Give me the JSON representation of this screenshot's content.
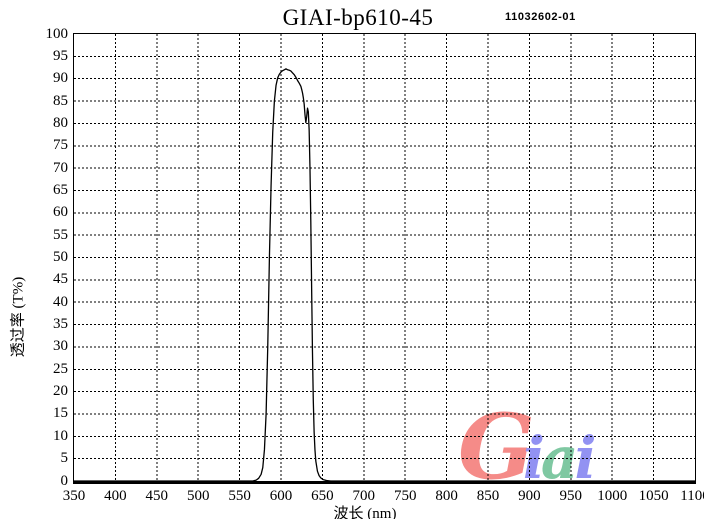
{
  "header": {
    "title": "GIAI-bp610-45",
    "code": "11032602-01"
  },
  "axes": {
    "x_label": "波长 (nm)",
    "y_label": "透过率 (T%)",
    "x_ticks": [
      350,
      400,
      450,
      500,
      550,
      600,
      650,
      700,
      750,
      800,
      850,
      900,
      950,
      1000,
      1050,
      1100
    ],
    "y_ticks": [
      0,
      5,
      10,
      15,
      20,
      25,
      30,
      35,
      40,
      45,
      50,
      55,
      60,
      65,
      70,
      75,
      80,
      85,
      90,
      95,
      100
    ]
  },
  "watermark": {
    "text": "Giai",
    "letters": [
      {
        "ch": "G",
        "color": "#f3726e",
        "size": "big"
      },
      {
        "ch": "i",
        "color": "#7b7bf0",
        "size": "small"
      },
      {
        "ch": "a",
        "color": "#63bd8e",
        "size": "small"
      },
      {
        "ch": "i",
        "color": "#7b7bf0",
        "size": "small"
      }
    ]
  },
  "chart_data": {
    "type": "line",
    "title": "GIAI-bp610-45",
    "subtitle": "11032602-01",
    "xlabel": "波长 (nm)",
    "ylabel": "透过率 (T%)",
    "xlim": [
      350,
      1100
    ],
    "ylim": [
      0,
      100
    ],
    "x_tick_step": 50,
    "y_tick_step": 5,
    "grid": "dashed black, both axes",
    "legend": "none",
    "line_color": "#000000",
    "description": "Bandpass filter transmission: zero below ~575 nm, steep rise to ~92% plateau between ~595-620 nm, notch dip to ~80% near 630 nm, steep fall to zero by ~655 nm, zero to 1100 nm",
    "series": [
      {
        "name": "GIAI-bp610-45 transmission",
        "points": [
          [
            350,
            0
          ],
          [
            400,
            0
          ],
          [
            450,
            0
          ],
          [
            500,
            0
          ],
          [
            540,
            0
          ],
          [
            560,
            0
          ],
          [
            566,
            0
          ],
          [
            570,
            0.2
          ],
          [
            573,
            0.6
          ],
          [
            576,
            1.5
          ],
          [
            578,
            3
          ],
          [
            580,
            7
          ],
          [
            582,
            15
          ],
          [
            584,
            30
          ],
          [
            586,
            50
          ],
          [
            588,
            66
          ],
          [
            590,
            78
          ],
          [
            592,
            85
          ],
          [
            594,
            88.5
          ],
          [
            596,
            90.2
          ],
          [
            598,
            91.0
          ],
          [
            600,
            91.5
          ],
          [
            602,
            91.8
          ],
          [
            604,
            92.0
          ],
          [
            606,
            92.2
          ],
          [
            608,
            92.0
          ],
          [
            610,
            91.9
          ],
          [
            612,
            91.7
          ],
          [
            614,
            91.3
          ],
          [
            616,
            90.9
          ],
          [
            618,
            90.3
          ],
          [
            620,
            89.6
          ],
          [
            622,
            89.0
          ],
          [
            624,
            88.3
          ],
          [
            625,
            87.6
          ],
          [
            626,
            86.8
          ],
          [
            627,
            85.7
          ],
          [
            628,
            84.3
          ],
          [
            629,
            81.9
          ],
          [
            630,
            80.2
          ],
          [
            631,
            81.5
          ],
          [
            632,
            83.4
          ],
          [
            633,
            82.6
          ],
          [
            634,
            78.5
          ],
          [
            635,
            70
          ],
          [
            636,
            58
          ],
          [
            637,
            43
          ],
          [
            638,
            29
          ],
          [
            639,
            18
          ],
          [
            640,
            11
          ],
          [
            641,
            7
          ],
          [
            642,
            4.5
          ],
          [
            644,
            2.2
          ],
          [
            646,
            1.2
          ],
          [
            648,
            0.7
          ],
          [
            651,
            0.3
          ],
          [
            655,
            0.1
          ],
          [
            660,
            0
          ],
          [
            700,
            0
          ],
          [
            750,
            0
          ],
          [
            800,
            0
          ],
          [
            850,
            0
          ],
          [
            900,
            0
          ],
          [
            950,
            0
          ],
          [
            1000,
            0
          ],
          [
            1050,
            0
          ],
          [
            1100,
            0
          ]
        ]
      }
    ]
  }
}
